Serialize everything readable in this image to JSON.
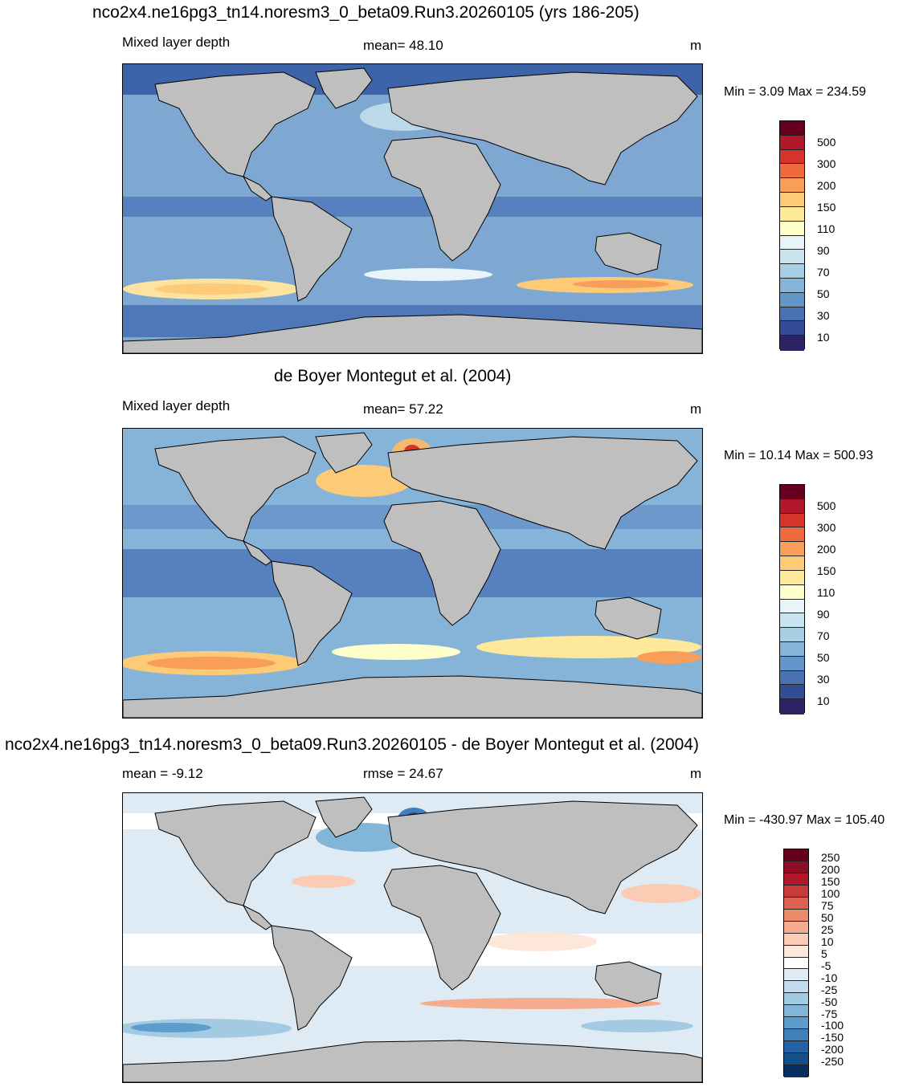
{
  "panels": [
    {
      "title": "nco2x4.ne16pg3_tn14.noresm3_0_beta09.Run3.20260105 (yrs 186-205)",
      "left_label": "Mixed layer depth",
      "center_label": "mean=  48.10",
      "units": "m",
      "minmax": "Min =   3.09 Max = 234.59",
      "colorbar": {
        "labels": [
          "500",
          "300",
          "200",
          "150",
          "110",
          "90",
          "70",
          "50",
          "30",
          "10"
        ],
        "colors": [
          "#67001f",
          "#b2182b",
          "#d6332a",
          "#ef6a3f",
          "#f89e58",
          "#fdca77",
          "#fee89a",
          "#ffffcc",
          "#e8f4f8",
          "#c9e4ef",
          "#a6cfe4",
          "#86b4d8",
          "#6396c9",
          "#4a72b3",
          "#344b95",
          "#2d2363"
        ]
      }
    },
    {
      "title": "de Boyer Montegut et al. (2004)",
      "left_label": "Mixed layer depth",
      "center_label": "mean=  57.22",
      "units": "m",
      "minmax": "Min =  10.14 Max = 500.93",
      "colorbar": {
        "labels": [
          "500",
          "300",
          "200",
          "150",
          "110",
          "90",
          "70",
          "50",
          "30",
          "10"
        ],
        "colors": [
          "#67001f",
          "#b2182b",
          "#d6332a",
          "#ef6a3f",
          "#f89e58",
          "#fdca77",
          "#fee89a",
          "#ffffcc",
          "#e8f4f8",
          "#c9e4ef",
          "#a6cfe4",
          "#86b4d8",
          "#6396c9",
          "#4a72b3",
          "#344b95",
          "#2d2363"
        ]
      }
    },
    {
      "title": "nco2x4.ne16pg3_tn14.noresm3_0_beta09.Run3.20260105 - de Boyer Montegut et al. (2004)",
      "left_label": "mean =  -9.12",
      "center_label": "rmse =  24.67",
      "units": "m",
      "minmax": "Min = -430.97 Max = 105.40",
      "colorbar": {
        "labels": [
          "250",
          "200",
          "150",
          "100",
          "75",
          "50",
          "25",
          "10",
          "5",
          "-5",
          "-10",
          "-25",
          "-50",
          "-75",
          "-100",
          "-150",
          "-200",
          "-250"
        ],
        "colors": [
          "#67001f",
          "#8e0d25",
          "#b2182b",
          "#c93a3c",
          "#dc6150",
          "#ec8a6c",
          "#f4ab8e",
          "#fbcbb4",
          "#fde6da",
          "#ffffff",
          "#deebf4",
          "#c3dced",
          "#a2cbe2",
          "#82b6d8",
          "#5d9dcb",
          "#3f80bb",
          "#2463a5",
          "#135089",
          "#053061"
        ]
      }
    }
  ],
  "colors": {
    "land": "#bfbfbf",
    "ocean_deep_blue": "#3d64a8",
    "ocean_mid_blue": "#7ea8d2",
    "ocean_light_blue": "#bcd9ea"
  }
}
